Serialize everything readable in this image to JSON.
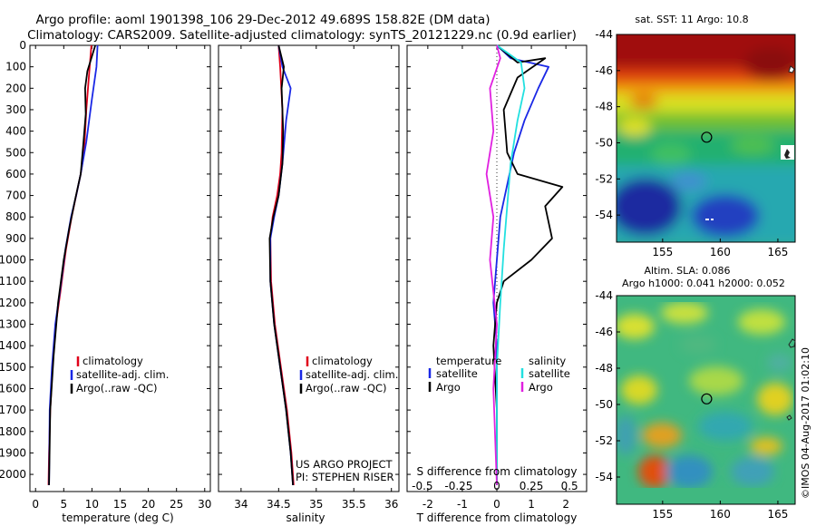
{
  "title": {
    "line1": "Argo profile: aoml 1901398_106 29-Dec-2012 49.689S 158.82E (DM data)",
    "line2": "Climatology: CARS2009. Satellite-adjusted climatology: synTS_20121229.nc (0.9d earlier)"
  },
  "credit": "©IMOS 04-Aug-2017 01:02:10",
  "colors": {
    "red": "#e0001a",
    "blue": "#1a28e6",
    "black": "#000000",
    "cyan": "#22e0e0",
    "magenta": "#e020e0"
  },
  "chart_data": [
    {
      "id": "temperature",
      "type": "line",
      "xlabel": "temperature (deg C)",
      "ylabel": "",
      "xlim": [
        -1,
        31
      ],
      "ylim": [
        2080,
        0
      ],
      "xticks": [
        0,
        5,
        10,
        15,
        20,
        25,
        30
      ],
      "yticks": [
        0,
        100,
        200,
        300,
        400,
        500,
        600,
        700,
        800,
        900,
        1000,
        1100,
        1200,
        1300,
        1400,
        1500,
        1600,
        1700,
        1800,
        1900,
        2000
      ],
      "legend": [
        "climatology",
        "satellite-adj. clim.",
        "Argo(..raw -QC)"
      ],
      "series": [
        {
          "name": "climatology",
          "color": "red",
          "x": [
            9.9,
            9.6,
            9.0,
            8.6,
            8.0,
            7.2,
            6.4,
            5.4,
            4.4,
            3.6,
            3.0,
            2.6,
            2.4,
            2.3
          ],
          "y": [
            0,
            100,
            300,
            500,
            600,
            700,
            800,
            950,
            1150,
            1300,
            1500,
            1700,
            1900,
            2050
          ]
        },
        {
          "name": "satellite-adj. clim.",
          "color": "blue",
          "x": [
            11.0,
            10.8,
            10.0,
            9.0,
            8.0,
            7.2,
            6.3,
            5.3,
            4.3,
            3.5,
            2.9,
            2.5,
            2.4
          ],
          "y": [
            0,
            100,
            250,
            450,
            600,
            700,
            800,
            950,
            1150,
            1300,
            1500,
            1700,
            2050
          ]
        },
        {
          "name": "Argo(..raw -QC)",
          "color": "black",
          "x": [
            10.6,
            9.2,
            8.8,
            8.9,
            8.5,
            8.0,
            7.0,
            6.0,
            5.0,
            4.0,
            3.2,
            2.6,
            2.4
          ],
          "y": [
            0,
            120,
            200,
            320,
            450,
            600,
            720,
            850,
            1000,
            1200,
            1450,
            1700,
            2050
          ]
        }
      ]
    },
    {
      "id": "salinity",
      "type": "line",
      "xlabel": "salinity",
      "ylabel": "",
      "xlim": [
        33.7,
        36.1
      ],
      "ylim": [
        2080,
        0
      ],
      "xticks": [
        34,
        34.5,
        35,
        35.5,
        36
      ],
      "legend": [
        "climatology",
        "satellite-adj. clim.",
        "Argo(..raw -QC)"
      ],
      "annotation": [
        "US ARGO PROJECT",
        "PI: STEPHEN RISER"
      ],
      "series": [
        {
          "name": "climatology",
          "color": "red",
          "x": [
            34.5,
            34.52,
            34.55,
            34.54,
            34.52,
            34.48,
            34.42,
            34.39,
            34.4,
            34.45,
            34.53,
            34.61,
            34.67,
            34.7
          ],
          "y": [
            0,
            100,
            300,
            500,
            600,
            700,
            800,
            900,
            1100,
            1300,
            1500,
            1700,
            1900,
            2050
          ]
        },
        {
          "name": "satellite-adj. clim.",
          "color": "blue",
          "x": [
            34.5,
            34.55,
            34.66,
            34.6,
            34.55,
            34.5,
            34.44,
            34.39,
            34.39,
            34.44,
            34.52,
            34.6,
            34.66,
            34.69
          ],
          "y": [
            0,
            100,
            200,
            350,
            550,
            700,
            800,
            900,
            1100,
            1300,
            1500,
            1700,
            1900,
            2050
          ]
        },
        {
          "name": "Argo(..raw -QC)",
          "color": "black",
          "x": [
            34.5,
            34.57,
            34.54,
            34.56,
            34.55,
            34.5,
            34.43,
            34.38,
            34.39,
            34.44,
            34.52,
            34.6,
            34.66,
            34.69
          ],
          "y": [
            0,
            100,
            200,
            400,
            550,
            700,
            800,
            900,
            1100,
            1300,
            1500,
            1700,
            1900,
            2050
          ]
        }
      ]
    },
    {
      "id": "differences",
      "type": "line",
      "xlabel": "T difference from climatology",
      "xlabel2": "S difference from climatology",
      "xlim": [
        -2.6,
        2.6
      ],
      "ylim": [
        2080,
        0
      ],
      "xticks": [
        -2,
        -1,
        0,
        1,
        2
      ],
      "xticks2": [
        "-0.5",
        "-0.25",
        "0",
        "0.25",
        "0.5"
      ],
      "legend": {
        "temperature": {
          "title": "temperature",
          "items": [
            "satellite",
            "Argo"
          ]
        },
        "salinity": {
          "title": "salinity",
          "items": [
            "satellite",
            "Argo"
          ]
        }
      },
      "series": [
        {
          "name": "temperature satellite",
          "color": "blue",
          "x": [
            0.0,
            0.4,
            1.5,
            1.2,
            0.8,
            0.5,
            0.3,
            0.1,
            0.0,
            -0.1,
            0.0,
            0.0,
            0.0
          ],
          "y": [
            0,
            60,
            100,
            200,
            350,
            500,
            650,
            800,
            1000,
            1200,
            1400,
            1700,
            2050
          ]
        },
        {
          "name": "temperature Argo",
          "color": "black",
          "x": [
            0.0,
            0.6,
            1.4,
            0.6,
            0.2,
            0.3,
            0.6,
            1.9,
            1.4,
            1.6,
            1.0,
            0.2,
            0.0,
            -0.1,
            0.0,
            0.0
          ],
          "y": [
            0,
            80,
            60,
            150,
            300,
            500,
            600,
            660,
            750,
            900,
            1000,
            1100,
            1200,
            1400,
            1700,
            2050
          ]
        },
        {
          "name": "salinity satellite",
          "color": "cyan",
          "x": [
            0.0,
            0.7,
            0.8,
            0.6,
            0.4,
            0.3,
            0.2,
            0.1,
            0.0,
            0.0
          ],
          "y": [
            0,
            80,
            200,
            350,
            550,
            750,
            950,
            1200,
            1500,
            2050
          ]
        },
        {
          "name": "salinity Argo",
          "color": "magenta",
          "x": [
            0.0,
            0.1,
            -0.2,
            -0.1,
            -0.3,
            -0.1,
            -0.2,
            0.0,
            -0.1,
            0.0
          ],
          "y": [
            0,
            60,
            200,
            400,
            600,
            800,
            1000,
            1300,
            1600,
            2050
          ]
        }
      ]
    },
    {
      "id": "sst-map",
      "type": "heatmap",
      "title": "sat. SST: 11 Argo: 10.8",
      "xlim": [
        151,
        166.5
      ],
      "ylim": [
        -55.5,
        -44
      ],
      "xticks": [
        155,
        160,
        165
      ],
      "yticks": [
        -44,
        -46,
        -48,
        -50,
        -52,
        -54
      ],
      "marker": {
        "lon": 158.82,
        "lat": -49.689
      }
    },
    {
      "id": "sla-map",
      "type": "heatmap",
      "title_line1": "Altim. SLA: 0.086",
      "title_line2": "Argo h1000: 0.041 h2000: 0.052",
      "xlim": [
        151,
        166.5
      ],
      "ylim": [
        -55.5,
        -44
      ],
      "xticks": [
        155,
        160,
        165
      ],
      "yticks": [
        -44,
        -46,
        -48,
        -50,
        -52,
        -54
      ],
      "marker": {
        "lon": 158.82,
        "lat": -49.689
      }
    }
  ]
}
